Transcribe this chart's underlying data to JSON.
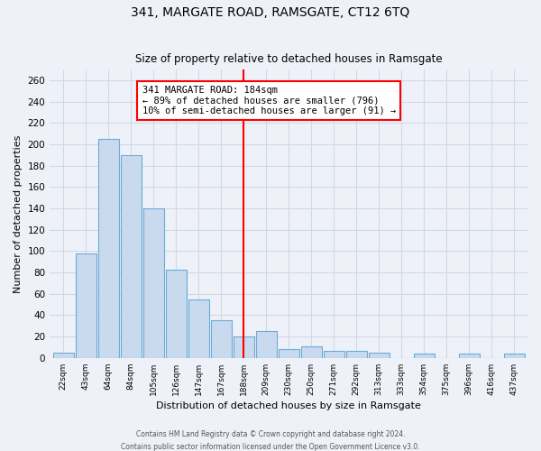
{
  "title": "341, MARGATE ROAD, RAMSGATE, CT12 6TQ",
  "subtitle": "Size of property relative to detached houses in Ramsgate",
  "xlabel": "Distribution of detached houses by size in Ramsgate",
  "ylabel": "Number of detached properties",
  "bar_labels": [
    "22sqm",
    "43sqm",
    "64sqm",
    "84sqm",
    "105sqm",
    "126sqm",
    "147sqm",
    "167sqm",
    "188sqm",
    "209sqm",
    "230sqm",
    "250sqm",
    "271sqm",
    "292sqm",
    "313sqm",
    "333sqm",
    "354sqm",
    "375sqm",
    "396sqm",
    "416sqm",
    "437sqm"
  ],
  "bar_values": [
    5,
    98,
    205,
    190,
    140,
    83,
    55,
    35,
    20,
    25,
    8,
    11,
    7,
    7,
    5,
    0,
    4,
    0,
    4,
    0,
    4
  ],
  "bar_color": "#c9d9ee",
  "bar_edge_color": "#6baad8",
  "vline_x_index": 8,
  "vline_color": "red",
  "annotation_title": "341 MARGATE ROAD: 184sqm",
  "annotation_line1": "← 89% of detached houses are smaller (796)",
  "annotation_line2": "10% of semi-detached houses are larger (91) →",
  "annotation_box_color": "white",
  "annotation_box_edge_color": "red",
  "ylim": [
    0,
    270
  ],
  "yticks": [
    0,
    20,
    40,
    60,
    80,
    100,
    120,
    140,
    160,
    180,
    200,
    220,
    240,
    260
  ],
  "footer_line1": "Contains HM Land Registry data © Crown copyright and database right 2024.",
  "footer_line2": "Contains public sector information licensed under the Open Government Licence v3.0.",
  "background_color": "#eef2f8",
  "grid_color": "#d0d8e8"
}
